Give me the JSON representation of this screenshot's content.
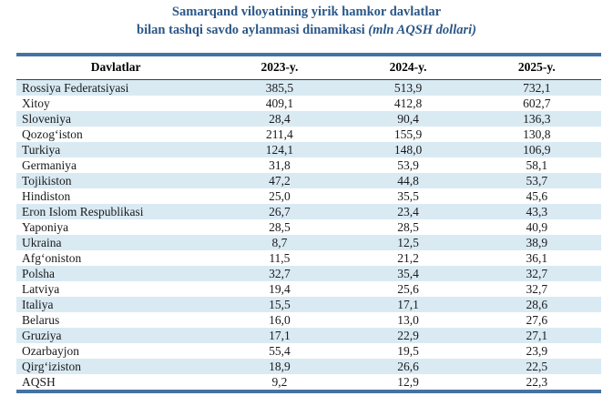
{
  "title": {
    "line1": "Samarqand viloyatining yirik hamkor davlatlar",
    "line2_text": "bilan tashqi savdo aylanmasi dinamikasi ",
    "line2_unit": "(mln AQSH dollari)"
  },
  "colors": {
    "title_blue": "#2A5788",
    "table_border_blue": "#4472A4",
    "alt_row_blue": "#D9EAF3",
    "header_rule": "#3f3f3f"
  },
  "table": {
    "columns": [
      "Davlatlar",
      "2023-y.",
      "2024-y.",
      "2025-y."
    ],
    "rows": [
      {
        "country": "Rossiya Federatsiyasi",
        "y2023": "385,5",
        "y2024": "513,9",
        "y2025": "732,1"
      },
      {
        "country": "Xitoy",
        "y2023": "409,1",
        "y2024": "412,8",
        "y2025": "602,7"
      },
      {
        "country": "Sloveniya",
        "y2023": "28,4",
        "y2024": "90,4",
        "y2025": "136,3"
      },
      {
        "country": "Qozogʻiston",
        "y2023": "211,4",
        "y2024": "155,9",
        "y2025": "130,8"
      },
      {
        "country": "Turkiya",
        "y2023": "124,1",
        "y2024": "148,0",
        "y2025": "106,9"
      },
      {
        "country": "Germaniya",
        "y2023": "31,8",
        "y2024": "53,9",
        "y2025": "58,1"
      },
      {
        "country": "Tojikiston",
        "y2023": "47,2",
        "y2024": "44,8",
        "y2025": "53,7"
      },
      {
        "country": "Hindiston",
        "y2023": "25,0",
        "y2024": "35,5",
        "y2025": "45,6"
      },
      {
        "country": "Eron Islom Respublikasi",
        "y2023": "26,7",
        "y2024": "23,4",
        "y2025": "43,3"
      },
      {
        "country": "Yaponiya",
        "y2023": "28,5",
        "y2024": "28,5",
        "y2025": "40,9"
      },
      {
        "country": "Ukraina",
        "y2023": "8,7",
        "y2024": "12,5",
        "y2025": "38,9"
      },
      {
        "country": "Afgʻoniston",
        "y2023": "11,5",
        "y2024": "21,2",
        "y2025": "36,1"
      },
      {
        "country": "Polsha",
        "y2023": "32,7",
        "y2024": "35,4",
        "y2025": "32,7"
      },
      {
        "country": "Latviya",
        "y2023": "19,4",
        "y2024": "25,6",
        "y2025": "32,7"
      },
      {
        "country": "Italiya",
        "y2023": "15,5",
        "y2024": "17,1",
        "y2025": "28,6"
      },
      {
        "country": "Belarus",
        "y2023": "16,0",
        "y2024": "13,0",
        "y2025": "27,6"
      },
      {
        "country": "Gruziya",
        "y2023": "17,1",
        "y2024": "22,9",
        "y2025": "27,1"
      },
      {
        "country": "Ozarbayjon",
        "y2023": "55,4",
        "y2024": "19,5",
        "y2025": "23,9"
      },
      {
        "country": "Qirgʻiziston",
        "y2023": "18,9",
        "y2024": "26,6",
        "y2025": "22,5"
      },
      {
        "country": "AQSH",
        "y2023": "9,2",
        "y2024": "12,9",
        "y2025": "22,3"
      }
    ]
  }
}
